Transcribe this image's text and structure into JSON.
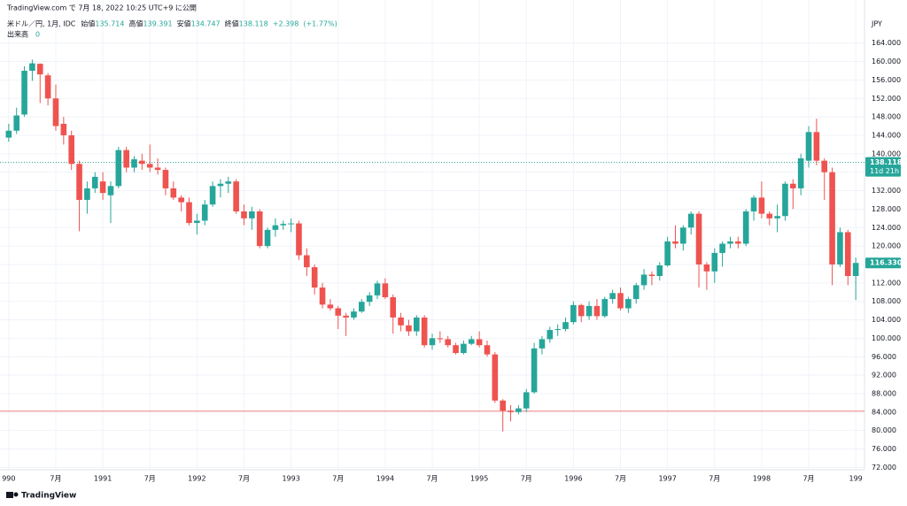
{
  "chart_data": {
    "type": "candlestick",
    "source": "TradingView.com で 7月 18, 2022 10:25 UTC+9 に公開",
    "symbol": "米ドル／円, 1月, IDC",
    "legend": {
      "open_label": "始値",
      "open": 135.714,
      "high_label": "高値",
      "high": 139.391,
      "low_label": "安値",
      "low": 134.747,
      "close_label": "終値",
      "close": 138.118,
      "change": {
        "value": 2.398,
        "label": "+2.398"
      },
      "change_pct": {
        "value": 1.77,
        "label": "(+1.77%)"
      }
    },
    "volume_label": "出来高",
    "volume": 0,
    "currency": "JPY",
    "brand": "TradingView",
    "up_color": "#26a69a",
    "down_color": "#ef5350",
    "grid": true,
    "x": [
      "1990-01",
      "1990-02",
      "1990-03",
      "1990-04",
      "1990-05",
      "1990-06",
      "1990-07",
      "1990-08",
      "1990-09",
      "1990-10",
      "1990-11",
      "1990-12",
      "1991-01",
      "1991-02",
      "1991-03",
      "1991-04",
      "1991-05",
      "1991-06",
      "1991-07",
      "1991-08",
      "1991-09",
      "1991-10",
      "1991-11",
      "1991-12",
      "1992-01",
      "1992-02",
      "1992-03",
      "1992-04",
      "1992-05",
      "1992-06",
      "1992-07",
      "1992-08",
      "1992-09",
      "1992-10",
      "1992-11",
      "1992-12",
      "1993-01",
      "1993-02",
      "1993-03",
      "1993-04",
      "1993-05",
      "1993-06",
      "1993-07",
      "1993-08",
      "1993-09",
      "1993-10",
      "1993-11",
      "1993-12",
      "1994-01",
      "1994-02",
      "1994-03",
      "1994-04",
      "1994-05",
      "1994-06",
      "1994-07",
      "1994-08",
      "1994-09",
      "1994-10",
      "1994-11",
      "1994-12",
      "1995-01",
      "1995-02",
      "1995-03",
      "1995-04",
      "1995-05",
      "1995-06",
      "1995-07",
      "1995-08",
      "1995-09",
      "1995-10",
      "1995-11",
      "1995-12",
      "1996-01",
      "1996-02",
      "1996-03",
      "1996-04",
      "1996-05",
      "1996-06",
      "1996-07",
      "1996-08",
      "1996-09",
      "1996-10",
      "1996-11",
      "1996-12",
      "1997-01",
      "1997-02",
      "1997-03",
      "1997-04",
      "1997-05",
      "1997-06",
      "1997-07",
      "1997-08",
      "1997-09",
      "1997-10",
      "1997-11",
      "1997-12",
      "1998-01",
      "1998-02",
      "1998-03",
      "1998-04",
      "1998-05",
      "1998-06",
      "1998-07",
      "1998-08",
      "1998-09",
      "1998-10",
      "1998-11",
      "1998-12",
      "1999-01"
    ],
    "open": [
      143.5,
      145.0,
      148.5,
      158.0,
      159.5,
      157.0,
      152.0,
      146.5,
      144.0,
      137.8,
      130.0,
      132.5,
      134.0,
      131.0,
      133.0,
      140.8,
      137.0,
      138.5,
      137.8,
      137.0,
      136.5,
      132.5,
      130.5,
      129.5,
      125.0,
      125.5,
      129.0,
      133.0,
      133.5,
      134.0,
      127.5,
      126.0,
      127.5,
      120.0,
      123.5,
      124.5,
      124.8,
      124.9,
      118.0,
      115.4,
      111.0,
      107.3,
      106.5,
      104.9,
      104.5,
      105.8,
      107.9,
      109.3,
      111.9,
      108.9,
      104.5,
      102.8,
      101.5,
      104.5,
      98.5,
      100.0,
      99.8,
      98.5,
      96.8,
      98.8,
      99.8,
      98.5,
      96.5,
      86.5,
      84.3,
      84.0,
      84.8,
      88.3,
      97.8,
      99.8,
      101.8,
      102.0,
      103.5,
      107.2,
      104.8,
      107.0,
      104.8,
      108.5,
      109.8,
      106.5,
      108.5,
      111.5,
      113.8,
      113.5,
      115.8,
      121.0,
      120.5,
      124.0,
      127.0,
      116.0,
      114.5,
      118.5,
      120.5,
      121.0,
      120.5,
      127.5,
      130.5,
      127.0,
      126.0,
      126.5,
      133.5,
      132.5,
      138.5,
      144.7,
      138.5,
      136.0,
      116.0,
      123.0,
      113.5
    ],
    "high": [
      146.5,
      150.0,
      159.0,
      160.4,
      159.6,
      157.5,
      155.0,
      148.0,
      145.0,
      138.5,
      134.0,
      136.0,
      136.0,
      134.0,
      141.5,
      141.5,
      139.5,
      140.0,
      142.0,
      139.0,
      137.0,
      134.0,
      131.0,
      130.5,
      127.0,
      130.0,
      134.0,
      134.5,
      135.0,
      134.5,
      129.0,
      128.5,
      128.0,
      124.0,
      126.0,
      125.5,
      126.0,
      125.5,
      119.5,
      116.0,
      112.0,
      108.5,
      107.0,
      105.5,
      106.5,
      108.5,
      110.0,
      112.5,
      113.0,
      109.5,
      105.5,
      104.0,
      105.0,
      105.0,
      101.0,
      101.5,
      100.5,
      99.0,
      99.5,
      100.5,
      101.5,
      99.5,
      97.0,
      86.8,
      85.5,
      85.5,
      89.0,
      99.0,
      100.5,
      102.5,
      103.0,
      104.5,
      108.0,
      107.5,
      108.0,
      108.5,
      109.0,
      110.5,
      111.0,
      109.0,
      112.0,
      115.0,
      114.5,
      116.5,
      122.0,
      124.5,
      124.5,
      127.5,
      127.5,
      116.5,
      119.5,
      121.0,
      122.0,
      122.0,
      128.0,
      131.0,
      134.0,
      127.5,
      129.0,
      134.0,
      134.5,
      140.0,
      146.0,
      147.6,
      139.0,
      137.0,
      124.0,
      123.5,
      117.5
    ],
    "low": [
      142.6,
      144.3,
      148.0,
      155.8,
      151.0,
      150.5,
      145.0,
      142.0,
      136.5,
      123.2,
      127.0,
      131.5,
      130.0,
      125.0,
      132.5,
      136.0,
      136.0,
      136.5,
      136.0,
      135.5,
      131.0,
      130.0,
      127.5,
      124.5,
      122.5,
      124.5,
      128.5,
      130.5,
      131.5,
      127.0,
      124.5,
      123.5,
      119.5,
      119.5,
      122.0,
      123.5,
      123.0,
      117.0,
      113.5,
      109.5,
      106.5,
      106.0,
      102.0,
      100.5,
      104.0,
      105.5,
      107.0,
      108.5,
      108.5,
      101.0,
      101.5,
      100.5,
      100.5,
      98.0,
      97.5,
      99.0,
      98.0,
      96.5,
      96.5,
      98.5,
      98.0,
      96.0,
      86.0,
      79.8,
      82.0,
      83.5,
      84.0,
      88.0,
      96.5,
      99.0,
      100.5,
      101.5,
      103.0,
      103.5,
      104.0,
      104.0,
      104.5,
      107.5,
      106.0,
      105.5,
      107.5,
      110.5,
      111.5,
      112.5,
      115.5,
      119.5,
      119.0,
      122.5,
      111.0,
      110.5,
      112.0,
      115.5,
      119.5,
      119.5,
      120.0,
      125.5,
      126.0,
      124.5,
      123.0,
      125.5,
      128.0,
      131.0,
      137.0,
      137.5,
      130.0,
      111.5,
      115.5,
      111.5,
      108.3
    ],
    "close": [
      145.0,
      148.3,
      158.0,
      159.6,
      157.2,
      152.0,
      146.0,
      144.0,
      137.8,
      130.0,
      132.5,
      135.0,
      131.5,
      133.0,
      140.8,
      137.0,
      138.8,
      137.8,
      137.0,
      136.5,
      132.5,
      130.5,
      129.5,
      125.0,
      125.5,
      129.0,
      133.0,
      133.5,
      134.0,
      127.5,
      126.0,
      127.5,
      120.0,
      123.5,
      124.5,
      124.8,
      124.9,
      118.0,
      115.4,
      111.0,
      107.3,
      106.5,
      104.9,
      104.5,
      105.8,
      107.9,
      109.3,
      111.9,
      108.9,
      104.5,
      102.8,
      101.5,
      104.5,
      98.5,
      100.0,
      99.8,
      98.5,
      96.8,
      98.8,
      99.8,
      98.5,
      96.5,
      86.5,
      84.3,
      84.0,
      84.8,
      88.3,
      97.8,
      99.8,
      101.8,
      102.0,
      103.5,
      107.2,
      104.8,
      107.0,
      104.8,
      108.5,
      109.8,
      106.5,
      108.5,
      111.5,
      113.8,
      113.5,
      115.8,
      121.0,
      120.5,
      124.0,
      127.0,
      116.0,
      114.5,
      118.5,
      120.5,
      121.0,
      120.5,
      127.5,
      130.5,
      127.0,
      126.0,
      126.5,
      133.5,
      132.5,
      139.0,
      144.7,
      138.5,
      136.0,
      116.0,
      123.0,
      113.5,
      116.33
    ],
    "xlim": [
      "1989-12",
      "1999-02"
    ],
    "xticks": [
      {
        "value": "1990-01",
        "label": "990"
      },
      {
        "value": "1990-07",
        "label": "7月"
      },
      {
        "value": "1991-01",
        "label": "1991"
      },
      {
        "value": "1991-07",
        "label": "7月"
      },
      {
        "value": "1992-01",
        "label": "1992"
      },
      {
        "value": "1992-07",
        "label": "7月"
      },
      {
        "value": "1993-01",
        "label": "1993"
      },
      {
        "value": "1993-07",
        "label": "7月"
      },
      {
        "value": "1994-01",
        "label": "1994"
      },
      {
        "value": "1994-07",
        "label": "7月"
      },
      {
        "value": "1995-01",
        "label": "1995"
      },
      {
        "value": "1995-07",
        "label": "7月"
      },
      {
        "value": "1996-01",
        "label": "1996"
      },
      {
        "value": "1996-07",
        "label": "7月"
      },
      {
        "value": "1997-01",
        "label": "1997"
      },
      {
        "value": "1997-07",
        "label": "7月"
      },
      {
        "value": "1998-01",
        "label": "1998"
      },
      {
        "value": "1998-07",
        "label": "7月"
      },
      {
        "value": "1999-01",
        "label": "199"
      }
    ],
    "ylim": [
      71.5,
      169.5
    ],
    "yticks": [
      {
        "value": 72,
        "label": "72.000"
      },
      {
        "value": 76,
        "label": "76.000"
      },
      {
        "value": 80,
        "label": "80.000"
      },
      {
        "value": 84,
        "label": "84.000"
      },
      {
        "value": 88,
        "label": "88.000"
      },
      {
        "value": 92,
        "label": "92.000"
      },
      {
        "value": 96,
        "label": "96.000"
      },
      {
        "value": 100,
        "label": "100.000"
      },
      {
        "value": 104,
        "label": "104.000"
      },
      {
        "value": 108,
        "label": "108.000"
      },
      {
        "value": 112,
        "label": "112.000"
      },
      {
        "value": 116,
        "label": "116.000"
      },
      {
        "value": 120,
        "label": "120.000"
      },
      {
        "value": 124,
        "label": "124.000"
      },
      {
        "value": 128,
        "label": "128.000"
      },
      {
        "value": 132,
        "label": "132.000"
      },
      {
        "value": 136,
        "label": "136.000"
      },
      {
        "value": 140,
        "label": "140.000"
      },
      {
        "value": 144,
        "label": "144.000"
      },
      {
        "value": 148,
        "label": "148.000"
      },
      {
        "value": 152,
        "label": "152.000"
      },
      {
        "value": 156,
        "label": "156.000"
      },
      {
        "value": 160,
        "label": "160.000"
      },
      {
        "value": 164,
        "label": "164.000"
      }
    ],
    "last_price": 138.118,
    "countdown": "11d 21h",
    "close_tag": {
      "value": 116.33,
      "label": "116.330"
    },
    "hline": 84.2,
    "hline_color": "#ef5350"
  }
}
